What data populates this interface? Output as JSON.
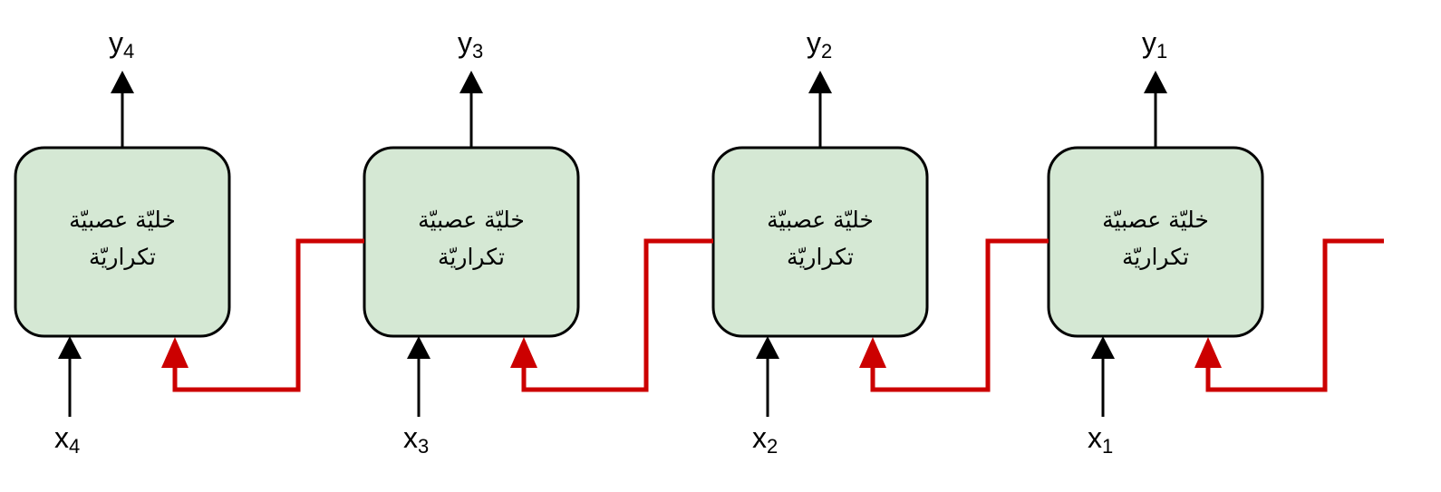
{
  "cells": [
    {
      "line1": "خليّة عصبيّة",
      "line2": "تكراريّة",
      "input_base": "x",
      "input_sub": "4",
      "output_base": "y",
      "output_sub": "4"
    },
    {
      "line1": "خليّة عصبيّة",
      "line2": "تكراريّة",
      "input_base": "x",
      "input_sub": "3",
      "output_base": "y",
      "output_sub": "3"
    },
    {
      "line1": "خليّة عصبيّة",
      "line2": "تكراريّة",
      "input_base": "x",
      "input_sub": "2",
      "output_base": "y",
      "output_sub": "2"
    },
    {
      "line1": "خليّة عصبيّة",
      "line2": "تكراريّة",
      "input_base": "x",
      "input_sub": "1",
      "output_base": "y",
      "output_sub": "1"
    }
  ],
  "colors": {
    "cell_fill": "#d5e8d4",
    "cell_stroke": "#000000",
    "recurrent_arrow": "#cc0000",
    "io_arrow": "#000000"
  }
}
